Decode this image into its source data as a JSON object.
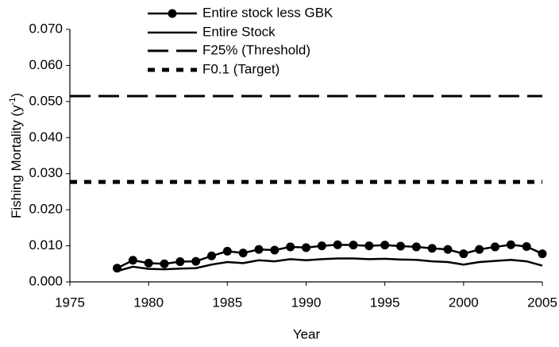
{
  "chart_data": {
    "type": "line",
    "xlabel": "Year",
    "ylabel": [
      "Fishing Mortality (y",
      "-1",
      ")"
    ],
    "xlim": [
      1975,
      2005
    ],
    "xticks": [
      1975,
      1980,
      1985,
      1990,
      1995,
      2000,
      2005
    ],
    "ylim": [
      0,
      0.07
    ],
    "yticks": [
      {
        "value": 0,
        "label": "0.000"
      },
      {
        "value": 0.01,
        "label": "0.010"
      },
      {
        "value": 0.02,
        "label": "0.020"
      },
      {
        "value": 0.03,
        "label": "0.030"
      },
      {
        "value": 0.04,
        "label": "0.040"
      },
      {
        "value": 0.05,
        "label": "0.050"
      },
      {
        "value": 0.06,
        "label": "0.060"
      },
      {
        "value": 0.07,
        "label": "0.070"
      }
    ],
    "series": [
      {
        "name": "Entire stock less GBK",
        "color": "#000000",
        "style": "marker",
        "x": [
          1978,
          1979,
          1980,
          1981,
          1982,
          1983,
          1984,
          1985,
          1986,
          1987,
          1988,
          1989,
          1990,
          1991,
          1992,
          1993,
          1994,
          1995,
          1996,
          1997,
          1998,
          1999,
          2000,
          2001,
          2002,
          2003,
          2004,
          2005
        ],
        "values": [
          0.0038,
          0.006,
          0.0052,
          0.005,
          0.0056,
          0.0057,
          0.0072,
          0.0085,
          0.008,
          0.009,
          0.0088,
          0.0097,
          0.0095,
          0.01,
          0.0103,
          0.0102,
          0.01,
          0.0102,
          0.0099,
          0.0097,
          0.0093,
          0.009,
          0.0078,
          0.009,
          0.0097,
          0.0103,
          0.0098,
          0.0078
        ]
      },
      {
        "name": "Entire Stock",
        "color": "#000000",
        "style": "solid",
        "x": [
          1978,
          1979,
          1980,
          1981,
          1982,
          1983,
          1984,
          1985,
          1986,
          1987,
          1988,
          1989,
          1990,
          1991,
          1992,
          1993,
          1994,
          1995,
          1996,
          1997,
          1998,
          1999,
          2000,
          2001,
          2002,
          2003,
          2004,
          2005
        ],
        "values": [
          0.003,
          0.0042,
          0.0036,
          0.0035,
          0.0037,
          0.0038,
          0.0048,
          0.0055,
          0.0052,
          0.006,
          0.0057,
          0.0063,
          0.006,
          0.0063,
          0.0065,
          0.0065,
          0.0063,
          0.0064,
          0.0062,
          0.0061,
          0.0057,
          0.0055,
          0.0048,
          0.0055,
          0.0058,
          0.0061,
          0.0057,
          0.0045
        ]
      },
      {
        "name": "F25% (Threshold)",
        "color": "#000000",
        "style": "dashed",
        "x": [
          1975,
          2005
        ],
        "values": [
          0.0515,
          0.0515
        ]
      },
      {
        "name": "F0.1 (Target)",
        "color": "#000000",
        "style": "dotted",
        "x": [
          1975,
          2005
        ],
        "values": [
          0.0277,
          0.0277
        ]
      }
    ]
  }
}
